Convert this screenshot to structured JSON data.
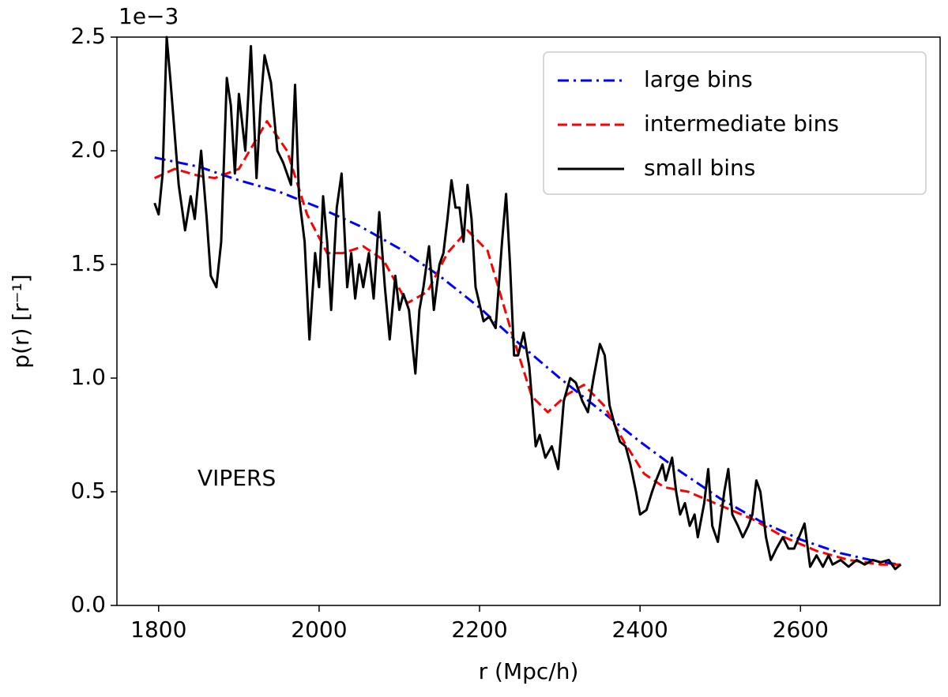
{
  "chart_data": {
    "type": "line",
    "xlabel": "r (Mpc/h)",
    "ylabel": "p(r) [r⁻¹]",
    "y_offset_label": "1e−3",
    "annotation": "VIPERS",
    "xlim": [
      1748,
      2774
    ],
    "ylim": [
      0,
      2.5
    ],
    "xticks": [
      1800,
      2000,
      2200,
      2400,
      2600
    ],
    "yticks": [
      {
        "value": 0,
        "label": "0.0"
      },
      0.5,
      {
        "value": 1,
        "label": "1.0"
      },
      1.5,
      {
        "value": 2,
        "label": "2.0"
      },
      2.5
    ],
    "legend": "upper right",
    "series": [
      {
        "name": "large bins",
        "color": "#0000ff",
        "dash": "dashdot",
        "x": [
          1795,
          1850,
          1900,
          1950,
          2000,
          2050,
          2100,
          2150,
          2200,
          2250,
          2300,
          2350,
          2400,
          2450,
          2500,
          2550,
          2600,
          2650,
          2700,
          2725
        ],
        "values": [
          1.97,
          1.93,
          1.87,
          1.82,
          1.75,
          1.67,
          1.57,
          1.45,
          1.31,
          1.15,
          1.0,
          0.86,
          0.72,
          0.59,
          0.47,
          0.37,
          0.29,
          0.23,
          0.19,
          0.18
        ]
      },
      {
        "name": "intermediate bins",
        "color": "#ff0000",
        "dash": "dashed",
        "x": [
          1795,
          1820,
          1850,
          1870,
          1900,
          1935,
          1960,
          1985,
          2010,
          2030,
          2055,
          2080,
          2110,
          2135,
          2160,
          2185,
          2210,
          2240,
          2265,
          2285,
          2310,
          2330,
          2355,
          2380,
          2405,
          2430,
          2460,
          2500,
          2540,
          2580,
          2620,
          2660,
          2700,
          2725
        ],
        "values": [
          1.88,
          1.92,
          1.89,
          1.88,
          1.92,
          2.13,
          2.0,
          1.72,
          1.55,
          1.55,
          1.58,
          1.52,
          1.33,
          1.38,
          1.55,
          1.65,
          1.56,
          1.2,
          0.92,
          0.85,
          0.93,
          0.97,
          0.88,
          0.72,
          0.58,
          0.52,
          0.5,
          0.44,
          0.38,
          0.3,
          0.24,
          0.2,
          0.18,
          0.18
        ]
      },
      {
        "name": "small bins",
        "color": "#000000",
        "dash": "solid",
        "x": [
          1795,
          1800,
          1805,
          1810,
          1815,
          1825,
          1833,
          1840,
          1845,
          1853,
          1860,
          1865,
          1872,
          1878,
          1885,
          1890,
          1895,
          1900,
          1908,
          1915,
          1922,
          1927,
          1932,
          1940,
          1948,
          1955,
          1965,
          1970,
          1975,
          1982,
          1988,
          1995,
          2000,
          2005,
          2010,
          2015,
          2022,
          2028,
          2035,
          2040,
          2045,
          2050,
          2055,
          2062,
          2068,
          2075,
          2082,
          2088,
          2095,
          2100,
          2105,
          2112,
          2120,
          2125,
          2130,
          2137,
          2143,
          2150,
          2155,
          2160,
          2165,
          2170,
          2175,
          2180,
          2185,
          2190,
          2195,
          2205,
          2212,
          2220,
          2228,
          2233,
          2238,
          2243,
          2248,
          2255,
          2262,
          2270,
          2275,
          2282,
          2290,
          2298,
          2305,
          2313,
          2320,
          2328,
          2335,
          2342,
          2350,
          2356,
          2362,
          2368,
          2375,
          2382,
          2388,
          2395,
          2400,
          2408,
          2415,
          2420,
          2428,
          2432,
          2440,
          2445,
          2450,
          2456,
          2462,
          2468,
          2472,
          2480,
          2485,
          2490,
          2497,
          2505,
          2510,
          2515,
          2522,
          2528,
          2535,
          2540,
          2545,
          2550,
          2557,
          2563,
          2570,
          2578,
          2585,
          2592,
          2598,
          2605,
          2612,
          2620,
          2628,
          2635,
          2640,
          2650,
          2660,
          2670,
          2680,
          2690,
          2700,
          2710,
          2718,
          2725
        ],
        "values": [
          1.77,
          1.72,
          1.9,
          2.5,
          2.3,
          1.85,
          1.65,
          1.8,
          1.7,
          2.0,
          1.7,
          1.45,
          1.4,
          1.6,
          2.32,
          2.2,
          1.9,
          2.25,
          2.0,
          2.46,
          1.88,
          2.2,
          2.42,
          2.3,
          2.0,
          1.95,
          1.85,
          2.29,
          1.8,
          1.6,
          1.17,
          1.55,
          1.4,
          1.8,
          1.6,
          1.3,
          1.75,
          1.9,
          1.4,
          1.55,
          1.35,
          1.5,
          1.4,
          1.55,
          1.35,
          1.73,
          1.4,
          1.17,
          1.45,
          1.3,
          1.37,
          1.3,
          1.02,
          1.3,
          1.4,
          1.58,
          1.3,
          1.5,
          1.55,
          1.7,
          1.87,
          1.75,
          1.75,
          1.6,
          1.85,
          1.7,
          1.4,
          1.25,
          1.27,
          1.22,
          1.6,
          1.81,
          1.5,
          1.1,
          1.1,
          1.2,
          1.05,
          0.7,
          0.75,
          0.65,
          0.7,
          0.6,
          0.9,
          1.0,
          0.98,
          0.9,
          0.85,
          1.0,
          1.15,
          1.1,
          0.88,
          0.8,
          0.72,
          0.7,
          0.62,
          0.5,
          0.4,
          0.42,
          0.5,
          0.55,
          0.62,
          0.55,
          0.65,
          0.5,
          0.4,
          0.45,
          0.35,
          0.4,
          0.3,
          0.45,
          0.6,
          0.35,
          0.28,
          0.5,
          0.6,
          0.4,
          0.35,
          0.3,
          0.35,
          0.4,
          0.55,
          0.5,
          0.3,
          0.2,
          0.25,
          0.3,
          0.25,
          0.25,
          0.3,
          0.36,
          0.17,
          0.22,
          0.17,
          0.22,
          0.18,
          0.2,
          0.17,
          0.2,
          0.18,
          0.2,
          0.19,
          0.2,
          0.16,
          0.18
        ]
      }
    ]
  }
}
